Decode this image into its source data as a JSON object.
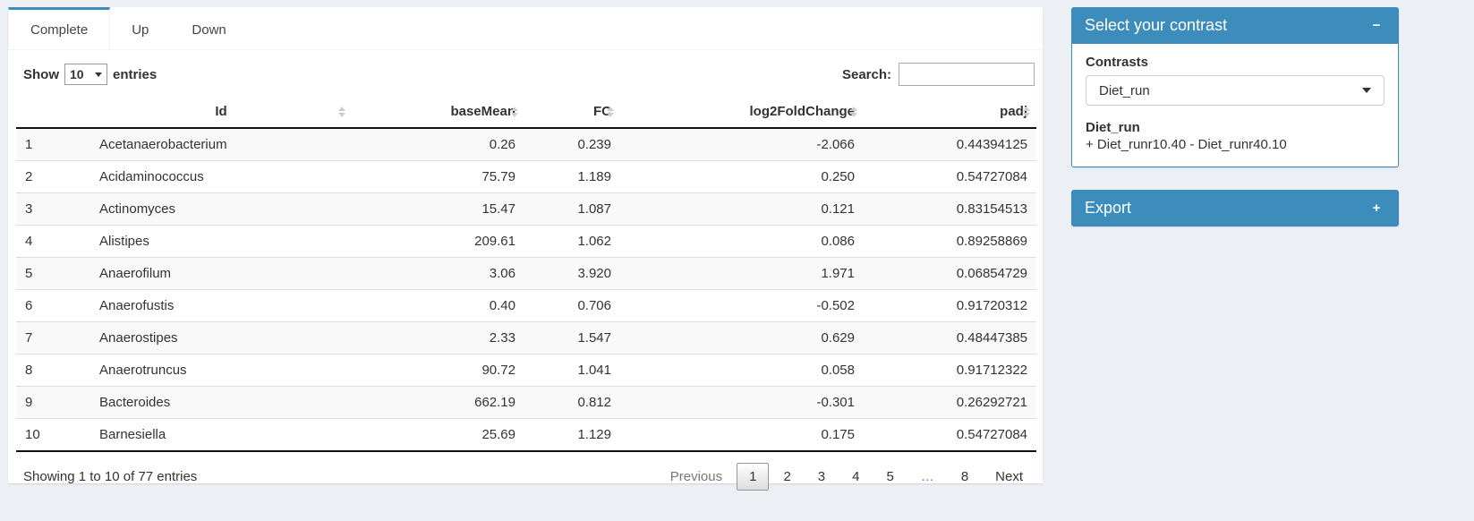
{
  "tabs": [
    {
      "id": "complete",
      "label": "Complete",
      "active": true
    },
    {
      "id": "up",
      "label": "Up",
      "active": false
    },
    {
      "id": "down",
      "label": "Down",
      "active": false
    }
  ],
  "length_control": {
    "prefix": "Show",
    "value": "10",
    "suffix": "entries"
  },
  "search": {
    "label": "Search:",
    "value": "",
    "placeholder": ""
  },
  "table": {
    "columns": [
      {
        "label": "",
        "sortable": false,
        "align": "left"
      },
      {
        "label": "Id",
        "sortable": true,
        "align": "left"
      },
      {
        "label": "baseMean",
        "sortable": true,
        "align": "right"
      },
      {
        "label": "FC",
        "sortable": true,
        "align": "right"
      },
      {
        "label": "log2FoldChange",
        "sortable": true,
        "align": "right"
      },
      {
        "label": "padj",
        "sortable": true,
        "align": "right"
      }
    ],
    "rows": [
      [
        "1",
        "Acetanaerobacterium",
        "0.26",
        "0.239",
        "-2.066",
        "0.44394125"
      ],
      [
        "2",
        "Acidaminococcus",
        "75.79",
        "1.189",
        "0.250",
        "0.54727084"
      ],
      [
        "3",
        "Actinomyces",
        "15.47",
        "1.087",
        "0.121",
        "0.83154513"
      ],
      [
        "4",
        "Alistipes",
        "209.61",
        "1.062",
        "0.086",
        "0.89258869"
      ],
      [
        "5",
        "Anaerofilum",
        "3.06",
        "3.920",
        "1.971",
        "0.06854729"
      ],
      [
        "6",
        "Anaerofustis",
        "0.40",
        "0.706",
        "-0.502",
        "0.91720312"
      ],
      [
        "7",
        "Anaerostipes",
        "2.33",
        "1.547",
        "0.629",
        "0.48447385"
      ],
      [
        "8",
        "Anaerotruncus",
        "90.72",
        "1.041",
        "0.058",
        "0.91712322"
      ],
      [
        "9",
        "Bacteroides",
        "662.19",
        "0.812",
        "-0.301",
        "0.26292721"
      ],
      [
        "10",
        "Barnesiella",
        "25.69",
        "1.129",
        "0.175",
        "0.54727084"
      ]
    ],
    "info": "Showing 1 to 10 of 77 entries",
    "pagination": {
      "previous": "Previous",
      "pages": [
        "1",
        "2",
        "3",
        "4",
        "5",
        "…",
        "8"
      ],
      "current": "1",
      "disabled": [
        "Previous",
        "…"
      ],
      "next": "Next"
    }
  },
  "contrast_box": {
    "title": "Select your contrast",
    "collapse_icon": "−",
    "contrasts_label": "Contrasts",
    "selected_contrast": "Diet_run",
    "detail_title": "Diet_run",
    "detail_formula": "+ Diet_runr10.40 - Diet_runr40.10"
  },
  "export_box": {
    "title": "Export",
    "expand_icon": "+"
  },
  "colors": {
    "accent": "#3d8dbc",
    "page_bg": "#ecf0f5",
    "header_border": "#111111",
    "stripe": "#f9f9f9"
  }
}
